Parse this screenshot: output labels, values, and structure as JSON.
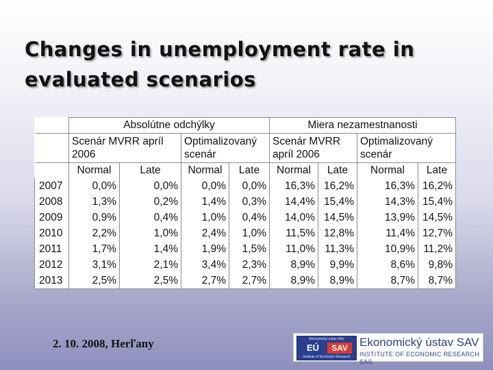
{
  "title": {
    "line1": "Changes in unemployment rate in",
    "line2": "evaluated scenarios"
  },
  "table": {
    "group_headers": [
      "Absolútne odchýlky",
      "Miera nezamestnanosti"
    ],
    "scenario_headers": [
      {
        "line1": "Scenár  MVRR  apríl",
        "line2": "2006"
      },
      {
        "line1": "Optimalizovaný",
        "line2": "scenár"
      },
      {
        "line1": "Scenár  MVRR",
        "line2": "apríl  2006"
      },
      {
        "line1": "Optimalizovaný",
        "line2": "scenár"
      }
    ],
    "sub_headers": [
      "Normal",
      "Late",
      "Normal",
      "Late",
      "Normal",
      "Late",
      "Normal",
      "Late"
    ],
    "rows": [
      {
        "year": "2007",
        "values": [
          "0,0%",
          "0,0%",
          "0,0%",
          "0,0%",
          "16,3%",
          "16,2%",
          "16,3%",
          "16,2%"
        ]
      },
      {
        "year": "2008",
        "values": [
          "1,3%",
          "0,2%",
          "1,4%",
          "0,3%",
          "14,4%",
          "15,4%",
          "14,3%",
          "15,4%"
        ]
      },
      {
        "year": "2009",
        "values": [
          "0,9%",
          "0,4%",
          "1,0%",
          "0,4%",
          "14,0%",
          "14,5%",
          "13,9%",
          "14,5%"
        ]
      },
      {
        "year": "2010",
        "values": [
          "2,2%",
          "1,0%",
          "2,4%",
          "1,0%",
          "11,5%",
          "12,8%",
          "11,4%",
          "12,7%"
        ]
      },
      {
        "year": "2011",
        "values": [
          "1,7%",
          "1,4%",
          "1,9%",
          "1,5%",
          "11,0%",
          "11,3%",
          "10,9%",
          "11,2%"
        ]
      },
      {
        "year": "2012",
        "values": [
          "3,1%",
          "2,1%",
          "3,4%",
          "2,3%",
          "8,9%",
          "9,9%",
          "8,6%",
          "9,8%"
        ]
      },
      {
        "year": "2013",
        "values": [
          "2,5%",
          "2,5%",
          "2,7%",
          "2,7%",
          "8,9%",
          "8,9%",
          "8,7%",
          "8,7%"
        ]
      }
    ]
  },
  "footer": {
    "date_place": "2. 10. 2008, Herľany"
  },
  "logo": {
    "emblem_top_text": "Ekonomický ústav SAV",
    "emblem_eu": "EÚ",
    "emblem_sav": "SAV",
    "emblem_bottom_text": "Institute of Economic Research",
    "name": "Ekonomický ústav SAV",
    "name_en": "INSTITUTE OF ECONOMIC RESEARCH SAS",
    "colors": {
      "blue": "#2b3f8f",
      "red": "#d83a2f"
    }
  }
}
